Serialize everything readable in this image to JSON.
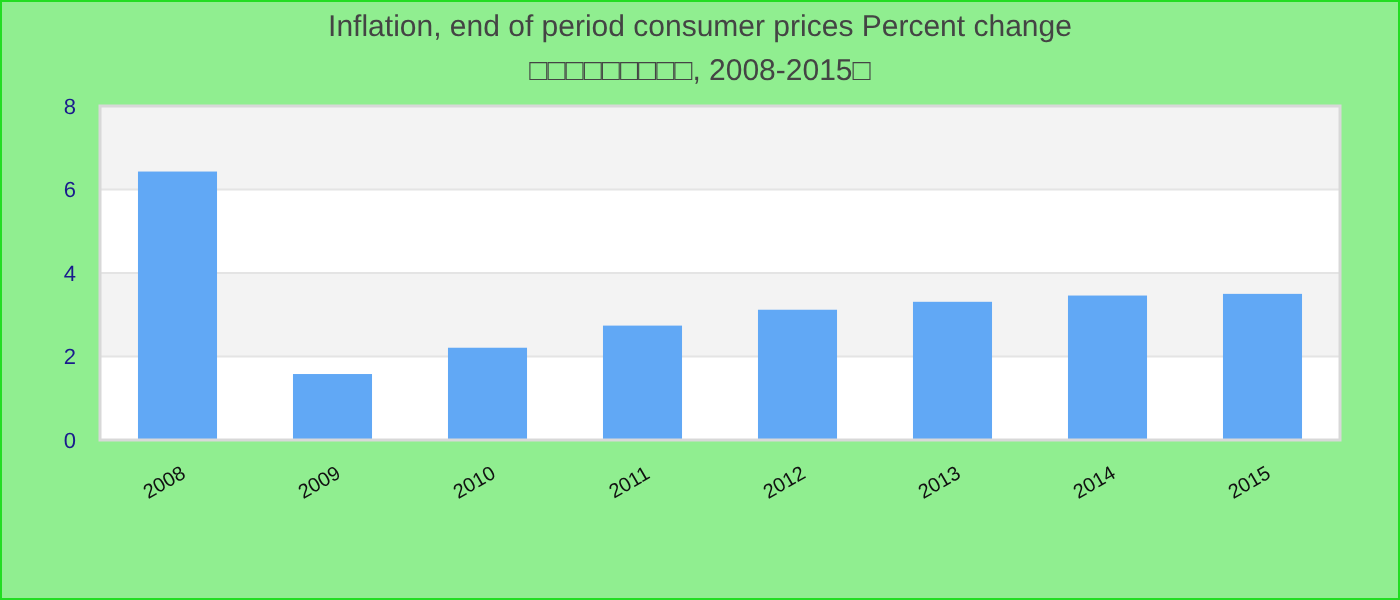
{
  "chart_data": {
    "type": "bar",
    "title": "Inflation, end of period consumer prices  Percent change",
    "subtitle": "□□□□□□□□□, 2008-2015□",
    "categories": [
      "2008",
      "2009",
      "2010",
      "2011",
      "2012",
      "2013",
      "2014",
      "2015"
    ],
    "values": [
      6.43,
      1.58,
      2.21,
      2.74,
      3.12,
      3.31,
      3.46,
      3.5
    ],
    "color": "#61a8f5",
    "ylim": [
      0,
      8
    ],
    "yticks": [
      0,
      2,
      4,
      6,
      8
    ],
    "grid": "y"
  }
}
